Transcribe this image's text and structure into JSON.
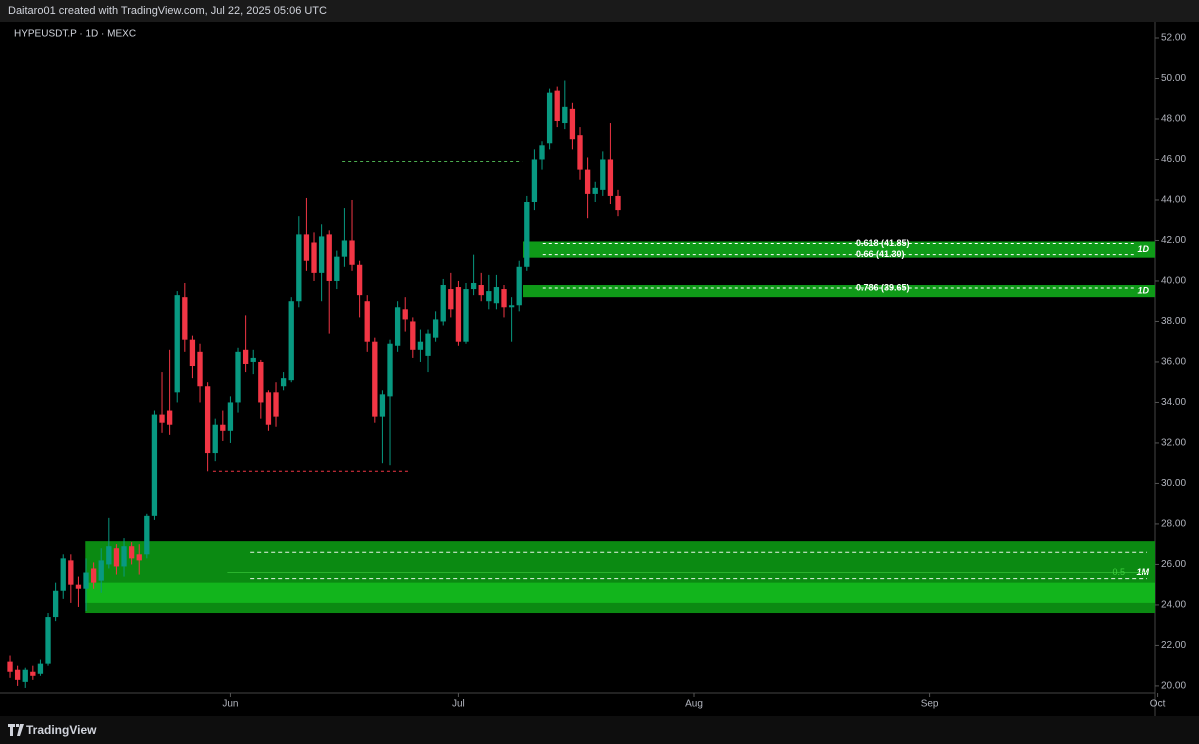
{
  "header": "Daitaro01 created with TradingView.com, Jul 22, 2025 05:06 UTC",
  "footer": "TradingView",
  "chart_data": {
    "type": "candlestick",
    "title": "HYPEUSDT.P · 1D · MEXC",
    "up_color": "#089981",
    "down_color": "#f23645",
    "x": [
      0,
      1,
      2,
      3,
      4,
      5,
      6,
      7,
      8,
      9,
      10,
      11,
      12,
      13,
      14,
      15,
      16,
      17,
      18,
      19,
      20,
      21,
      22,
      23,
      24,
      25,
      26,
      27,
      28,
      29,
      30,
      31,
      32,
      33,
      34,
      35,
      36,
      37,
      38,
      39,
      40,
      41,
      42,
      43,
      44,
      45,
      46,
      47,
      48,
      49,
      50,
      51,
      52,
      53,
      54,
      55,
      56,
      57,
      58,
      59,
      60,
      61,
      62,
      63,
      64,
      65,
      66,
      67,
      68,
      69,
      70,
      71,
      72,
      73,
      74,
      75,
      76,
      77,
      78,
      79,
      80
    ],
    "open": [
      21.2,
      20.8,
      20.2,
      20.7,
      20.6,
      21.1,
      23.4,
      24.7,
      26.2,
      25.0,
      24.8,
      25.8,
      25.2,
      26.0,
      26.8,
      25.9,
      26.9,
      26.5,
      26.5,
      28.4,
      33.4,
      33.6,
      34.5,
      39.2,
      37.1,
      36.5,
      34.8,
      31.5,
      32.9,
      32.6,
      34.0,
      36.6,
      36.0,
      36.0,
      34.5,
      34.5,
      34.8,
      35.1,
      39.0,
      42.3,
      41.9,
      40.4,
      42.3,
      40.0,
      41.2,
      42.0,
      40.8,
      39.0,
      37.0,
      33.3,
      34.3,
      36.8,
      38.6,
      38.0,
      36.6,
      36.3,
      37.2,
      38.0,
      39.6,
      39.7,
      37.0,
      39.6,
      39.8,
      39.0,
      38.9,
      39.6,
      38.7,
      38.8,
      40.7,
      43.9,
      46.0,
      46.8,
      49.4,
      47.8,
      48.5,
      47.2,
      45.5,
      44.3,
      44.5,
      46.0,
      44.2
    ],
    "high": [
      21.5,
      21.0,
      20.9,
      21.0,
      21.3,
      23.6,
      25.1,
      26.5,
      26.5,
      25.4,
      26.3,
      26.1,
      26.8,
      28.3,
      27.0,
      27.3,
      27.1,
      27.0,
      28.5,
      33.6,
      35.5,
      36.6,
      39.5,
      39.9,
      37.3,
      36.9,
      35.0,
      33.2,
      33.6,
      34.3,
      36.7,
      38.3,
      36.6,
      36.1,
      34.6,
      35.0,
      35.5,
      39.2,
      43.2,
      44.1,
      42.4,
      42.8,
      42.5,
      41.5,
      43.6,
      44.0,
      41.0,
      39.3,
      37.2,
      34.6,
      37.1,
      39.0,
      39.2,
      38.2,
      37.6,
      37.6,
      38.5,
      40.1,
      40.4,
      40.0,
      39.9,
      41.3,
      40.4,
      40.3,
      40.3,
      39.8,
      39.2,
      41.0,
      44.2,
      46.5,
      46.9,
      49.5,
      49.6,
      49.9,
      48.8,
      47.6,
      46.1,
      44.9,
      46.4,
      47.8,
      44.5
    ],
    "low": [
      20.4,
      20.0,
      19.9,
      20.3,
      20.5,
      21.0,
      23.2,
      24.3,
      24.1,
      23.9,
      23.7,
      24.8,
      24.6,
      25.8,
      25.5,
      25.4,
      26.0,
      25.5,
      26.3,
      28.2,
      32.5,
      32.4,
      34.0,
      36.5,
      35.2,
      34.0,
      30.6,
      31.1,
      32.1,
      32.0,
      33.5,
      35.5,
      35.4,
      33.2,
      32.6,
      32.8,
      34.6,
      35.0,
      38.7,
      40.5,
      40.0,
      39.0,
      37.4,
      39.6,
      40.7,
      40.5,
      38.2,
      36.5,
      33.0,
      31.0,
      30.9,
      36.5,
      37.5,
      36.2,
      36.0,
      35.5,
      37.0,
      37.8,
      38.2,
      36.8,
      36.9,
      39.3,
      39.0,
      38.6,
      38.6,
      38.2,
      37.0,
      38.5,
      40.5,
      43.5,
      45.5,
      46.5,
      47.6,
      47.5,
      46.5,
      45.0,
      43.1,
      43.9,
      44.2,
      43.8,
      43.2
    ],
    "close": [
      20.7,
      20.3,
      20.8,
      20.5,
      21.1,
      23.4,
      24.7,
      26.3,
      25.0,
      24.8,
      25.6,
      25.1,
      26.2,
      26.9,
      25.9,
      26.9,
      26.3,
      26.2,
      28.4,
      33.4,
      33.0,
      32.9,
      39.3,
      37.1,
      35.8,
      34.8,
      31.5,
      32.9,
      32.6,
      34.0,
      36.5,
      35.9,
      36.2,
      34.0,
      32.9,
      33.3,
      35.2,
      39.0,
      42.3,
      41.0,
      40.4,
      42.2,
      40.0,
      41.2,
      42.0,
      40.8,
      39.3,
      37.0,
      33.3,
      34.4,
      36.9,
      38.7,
      38.1,
      36.6,
      37.0,
      37.4,
      38.1,
      39.8,
      38.6,
      37.0,
      39.6,
      39.9,
      39.3,
      39.5,
      39.7,
      38.7,
      38.8,
      40.7,
      43.9,
      46.0,
      46.7,
      49.3,
      47.9,
      48.6,
      47.0,
      45.5,
      44.3,
      44.6,
      46.0,
      44.2,
      43.5
    ],
    "xlim": [
      -1.32,
      150.66
    ],
    "xticks": [
      {
        "value": 29,
        "label": "Jun"
      },
      {
        "value": 59,
        "label": "Jul"
      },
      {
        "value": 90,
        "label": "Aug"
      },
      {
        "value": 121,
        "label": "Sep"
      },
      {
        "value": 151,
        "label": "Oct"
      }
    ],
    "ylim": [
      19.65,
      52.79
    ],
    "yticks": [
      {
        "value": 20,
        "label": "20.00"
      },
      {
        "value": 22,
        "label": "22.00"
      },
      {
        "value": 24,
        "label": "24.00"
      },
      {
        "value": 26,
        "label": "26.00"
      },
      {
        "value": 28,
        "label": "28.00"
      },
      {
        "value": 30,
        "label": "30.00"
      },
      {
        "value": 32,
        "label": "32.00"
      },
      {
        "value": 34,
        "label": "34.00"
      },
      {
        "value": 36,
        "label": "36.00"
      },
      {
        "value": 38,
        "label": "38.00"
      },
      {
        "value": 40,
        "label": "40.00"
      },
      {
        "value": 42,
        "label": "42.00"
      },
      {
        "value": 44,
        "label": "44.00"
      },
      {
        "value": 46,
        "label": "46.00"
      },
      {
        "value": 48,
        "label": "48.00"
      },
      {
        "value": 50,
        "label": "50.00"
      },
      {
        "value": 52,
        "label": "52.00"
      }
    ],
    "zones": [
      {
        "from": 23.6,
        "to": 27.15,
        "start": 9.9,
        "color": "#0b8a12",
        "label": "1M"
      },
      {
        "from": 24.1,
        "to": 25.1,
        "start": 9.9,
        "color": "#12b51c"
      },
      {
        "from": 41.15,
        "to": 41.95,
        "start": 67.5,
        "color": "#0f9a18",
        "label": "1D"
      },
      {
        "from": 39.2,
        "to": 39.8,
        "start": 67.5,
        "color": "#0f9a18",
        "label": "1D"
      }
    ],
    "fib_levels": [
      {
        "value": 41.85,
        "label": "0.618 (41.85)",
        "start": 70.1
      },
      {
        "value": 41.3,
        "label": "0.66 (41.30)",
        "start": 70.1
      },
      {
        "value": 39.65,
        "label": "0.786 (39.65)",
        "start": 70.1
      }
    ],
    "zone_lines": [
      {
        "value": 26.6,
        "start": 31.6,
        "color": "#ffffff"
      },
      {
        "value": 25.3,
        "start": 31.6,
        "color": "#ffffff"
      },
      {
        "value": 25.6,
        "start": 28.6,
        "color": "#3fcf3f",
        "label": "0.5"
      }
    ],
    "swing_lines": [
      {
        "value": 30.6,
        "start": 26.7,
        "end": 52.6,
        "color": "#f23645"
      },
      {
        "value": 45.9,
        "start": 43.7,
        "end": 67.4,
        "color": "#4caf50"
      }
    ]
  }
}
